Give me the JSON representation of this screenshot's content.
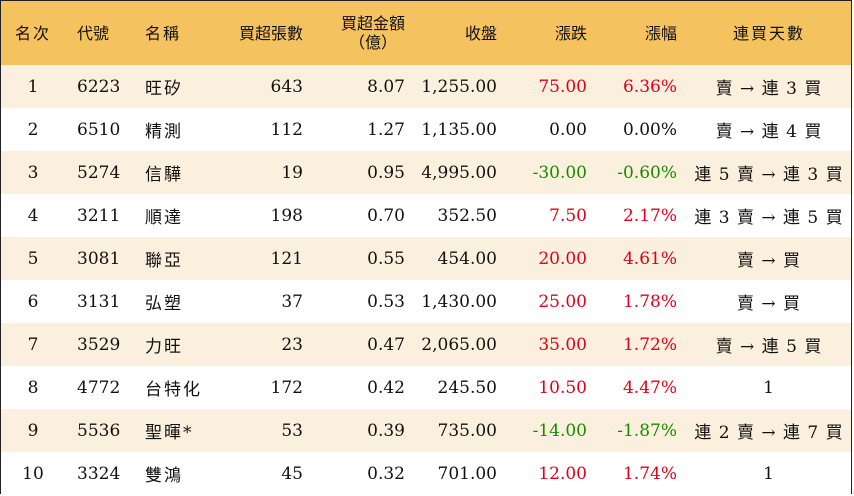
{
  "headers": {
    "rank": "名次",
    "code": "代號",
    "name": "名稱",
    "buy_sheets": "買超張數",
    "buy_amount_l1": "買超金額",
    "buy_amount_l2": "（億）",
    "close": "收盤",
    "change": "漲跌",
    "change_pct": "漲幅",
    "streak": "連買天數"
  },
  "rows": [
    {
      "rank": "1",
      "code": "6223",
      "name": "旺矽",
      "sheets": "643",
      "amount": "8.07",
      "close": "1,255.00",
      "change": "75.00",
      "pct": "6.36%",
      "dir": "up",
      "streak": "賣 → 連 3 買"
    },
    {
      "rank": "2",
      "code": "6510",
      "name": "精測",
      "sheets": "112",
      "amount": "1.27",
      "close": "1,135.00",
      "change": "0.00",
      "pct": "0.00%",
      "dir": "flat",
      "streak": "賣 → 連 4 買"
    },
    {
      "rank": "3",
      "code": "5274",
      "name": "信驊",
      "sheets": "19",
      "amount": "0.95",
      "close": "4,995.00",
      "change": "-30.00",
      "pct": "-0.60%",
      "dir": "down",
      "streak": "連 5 賣 → 連 3 買"
    },
    {
      "rank": "4",
      "code": "3211",
      "name": "順達",
      "sheets": "198",
      "amount": "0.70",
      "close": "352.50",
      "change": "7.50",
      "pct": "2.17%",
      "dir": "up",
      "streak": "連 3 賣 → 連 5 買"
    },
    {
      "rank": "5",
      "code": "3081",
      "name": "聯亞",
      "sheets": "121",
      "amount": "0.55",
      "close": "454.00",
      "change": "20.00",
      "pct": "4.61%",
      "dir": "up",
      "streak": "賣 → 買"
    },
    {
      "rank": "6",
      "code": "3131",
      "name": "弘塑",
      "sheets": "37",
      "amount": "0.53",
      "close": "1,430.00",
      "change": "25.00",
      "pct": "1.78%",
      "dir": "up",
      "streak": "賣 → 買"
    },
    {
      "rank": "7",
      "code": "3529",
      "name": "力旺",
      "sheets": "23",
      "amount": "0.47",
      "close": "2,065.00",
      "change": "35.00",
      "pct": "1.72%",
      "dir": "up",
      "streak": "賣 → 連 5 買"
    },
    {
      "rank": "8",
      "code": "4772",
      "name": "台特化",
      "sheets": "172",
      "amount": "0.42",
      "close": "245.50",
      "change": "10.50",
      "pct": "4.47%",
      "dir": "up",
      "streak": "1"
    },
    {
      "rank": "9",
      "code": "5536",
      "name": "聖暉*",
      "sheets": "53",
      "amount": "0.39",
      "close": "735.00",
      "change": "-14.00",
      "pct": "-1.87%",
      "dir": "down",
      "streak": "連 2 賣 → 連 7 買"
    },
    {
      "rank": "10",
      "code": "3324",
      "name": "雙鴻",
      "sheets": "45",
      "amount": "0.32",
      "close": "701.00",
      "change": "12.00",
      "pct": "1.74%",
      "dir": "up",
      "streak": "1"
    }
  ],
  "colors": {
    "header_bg": "#f5c260",
    "stripe": "#fbf0dd",
    "up": "#e0001b",
    "down": "#1a8a00"
  }
}
